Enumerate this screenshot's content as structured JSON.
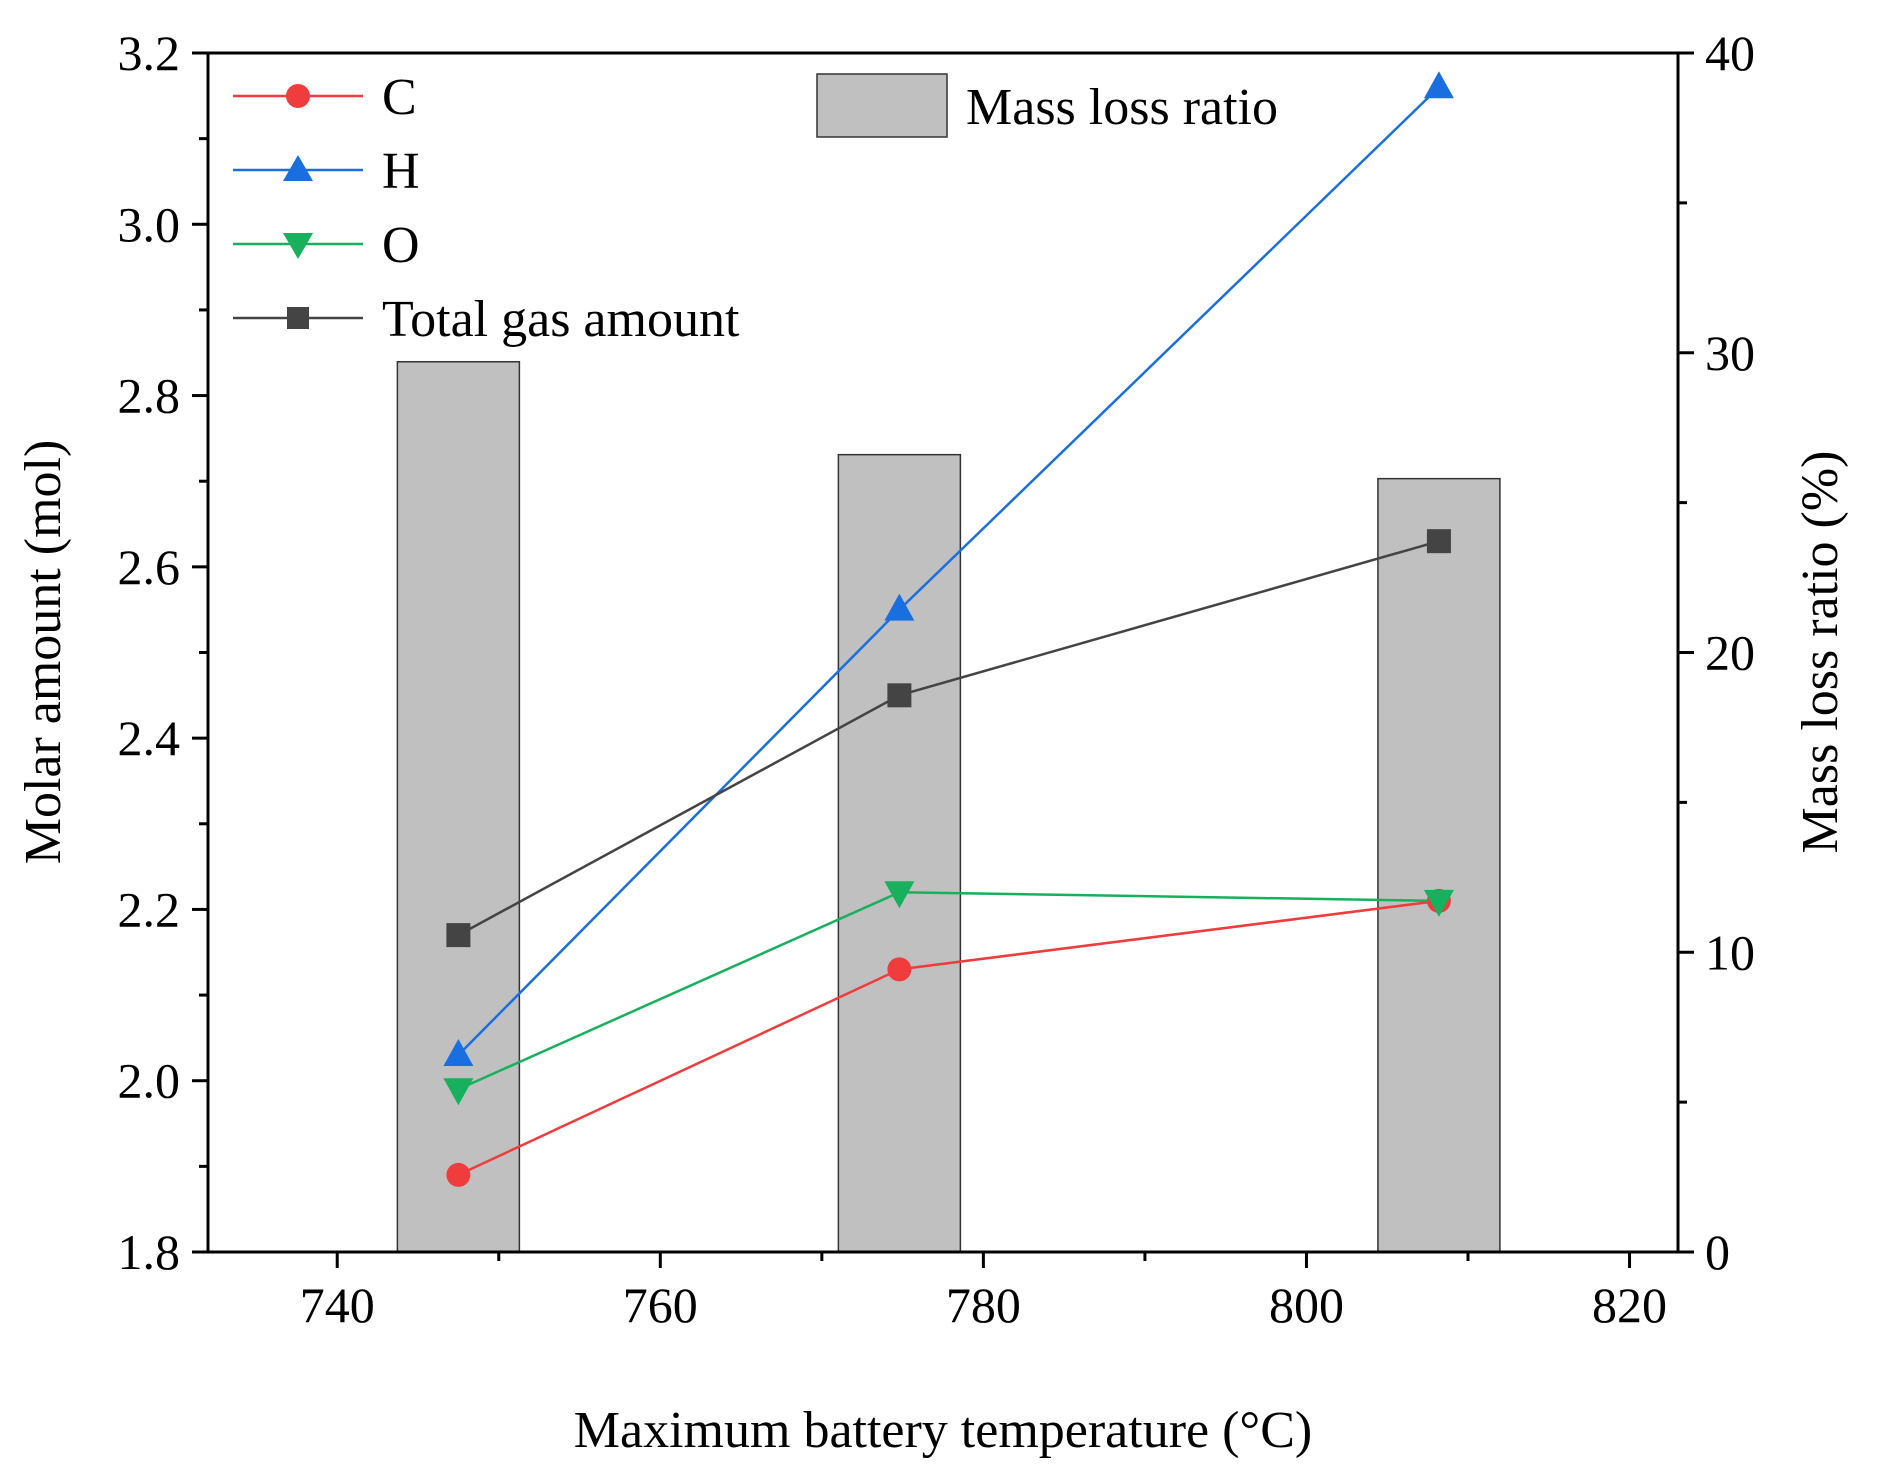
{
  "chart_data": {
    "type": "bar+line",
    "title": "",
    "xlabel": "Maximum battery temperature (°C)",
    "ylabel_left": "Molar amount (mol)",
    "ylabel_right": "Mass loss ratio (%)",
    "x_range": [
      732,
      823
    ],
    "x_ticks": [
      740,
      760,
      780,
      800,
      820
    ],
    "x_tick_labels": [
      "740",
      "760",
      "780",
      "800",
      "820"
    ],
    "y_left_range": [
      1.8,
      3.2
    ],
    "y_left_ticks": [
      1.8,
      2.0,
      2.2,
      2.4,
      2.6,
      2.8,
      3.0,
      3.2
    ],
    "y_left_tick_labels": [
      "1.8",
      "2.0",
      "2.2",
      "2.4",
      "2.6",
      "2.8",
      "3.0",
      "3.2"
    ],
    "y_right_range": [
      0,
      40
    ],
    "y_right_ticks": [
      0,
      10,
      20,
      30,
      40
    ],
    "y_right_tick_labels": [
      "0",
      "10",
      "20",
      "30",
      "40"
    ],
    "grid": false,
    "bars": {
      "name": "Mass loss ratio",
      "axis": "right",
      "color": "#c0c0c0",
      "x": [
        747.5,
        774.8,
        808.2
      ],
      "values": [
        29.7,
        26.6,
        25.8
      ]
    },
    "series": [
      {
        "name": "C",
        "axis": "left",
        "marker": "circle",
        "color": "#f03c3c",
        "x": [
          747.5,
          774.8,
          808.2
        ],
        "values": [
          1.89,
          2.13,
          2.21
        ]
      },
      {
        "name": "H",
        "axis": "left",
        "marker": "triangle-up",
        "color": "#1a6fe0",
        "x": [
          747.5,
          774.8,
          808.2
        ],
        "values": [
          2.03,
          2.55,
          3.16
        ]
      },
      {
        "name": "O",
        "axis": "left",
        "marker": "triangle-down",
        "color": "#17b05c",
        "x": [
          747.5,
          774.8,
          808.2
        ],
        "values": [
          1.99,
          2.22,
          2.21
        ]
      },
      {
        "name": "Total gas amount",
        "axis": "left",
        "marker": "square",
        "color": "#444444",
        "x": [
          747.5,
          774.8,
          808.2
        ],
        "values": [
          2.17,
          2.45,
          2.63
        ]
      }
    ],
    "legend_placement": "top-left",
    "bar_legend_placement": "top-center"
  }
}
